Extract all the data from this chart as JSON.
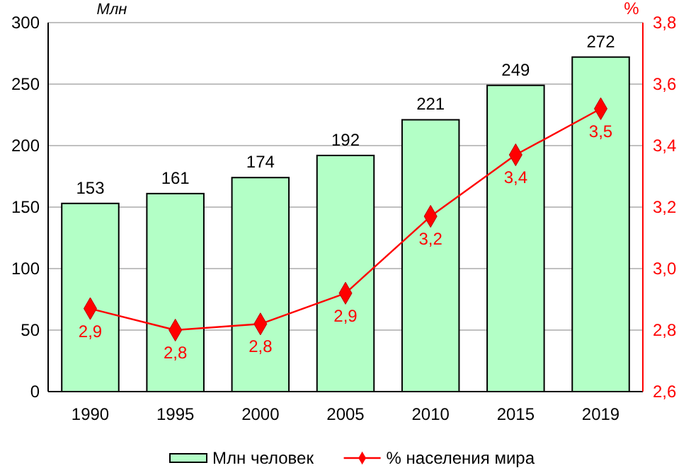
{
  "chart_data": {
    "type": "bar",
    "ylabel": "Млн",
    "y2label": "%",
    "categories": [
      "1990",
      "1995",
      "2000",
      "2005",
      "2010",
      "2015",
      "2019"
    ],
    "series": [
      {
        "name": "Млн человек",
        "color": "#b3ffc6",
        "values": [
          153,
          161,
          174,
          192,
          221,
          249,
          272
        ],
        "value_labels": [
          "153",
          "161",
          "174",
          "192",
          "221",
          "249",
          "272"
        ]
      },
      {
        "name": "% населения мира",
        "type": "line",
        "axis": "y2",
        "color": "#ff0000",
        "marker": "diamond",
        "values": [
          2.87,
          2.8,
          2.82,
          2.92,
          3.17,
          3.37,
          3.52
        ],
        "value_labels": [
          "2,9",
          "2,8",
          "2,8",
          "2,9",
          "3,2",
          "3,4",
          "3,5"
        ]
      }
    ],
    "ylim": [
      0,
      300
    ],
    "yticks": [
      0,
      50,
      100,
      150,
      200,
      250,
      300
    ],
    "y2lim": [
      2.6,
      3.8
    ],
    "y2ticks": [
      {
        "value": 2.6,
        "label": "2,6"
      },
      {
        "value": 2.8,
        "label": "2,8"
      },
      {
        "value": 3.0,
        "label": "3,0"
      },
      {
        "value": 3.2,
        "label": "3,2"
      },
      {
        "value": 3.4,
        "label": "3,4"
      },
      {
        "value": 3.6,
        "label": "3,6"
      },
      {
        "value": 3.8,
        "label": "3,8"
      }
    ],
    "grid": "y",
    "legend": "bottom"
  }
}
